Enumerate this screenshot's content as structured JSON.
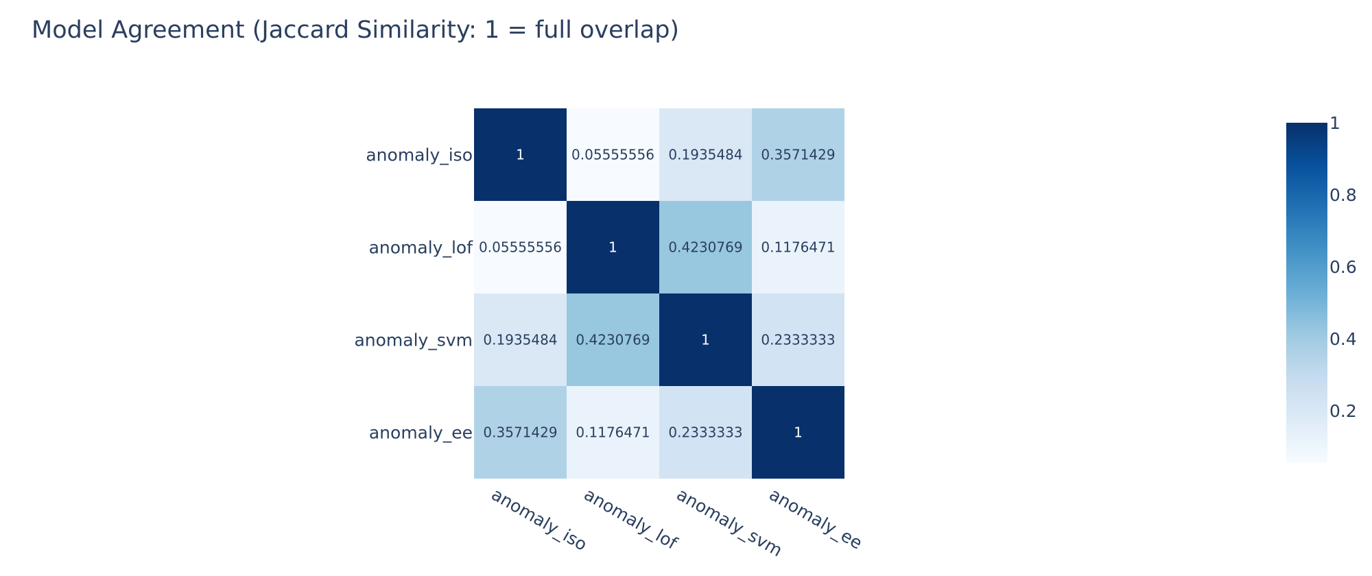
{
  "chart_data": {
    "type": "heatmap",
    "title": "Model Agreement (Jaccard Similarity: 1 = full overlap)",
    "x_categories": [
      "anomaly_iso",
      "anomaly_lof",
      "anomaly_svm",
      "anomaly_ee"
    ],
    "y_categories": [
      "anomaly_iso",
      "anomaly_lof",
      "anomaly_svm",
      "anomaly_ee"
    ],
    "values": [
      [
        1,
        0.05555556,
        0.1935484,
        0.3571429
      ],
      [
        0.05555556,
        1,
        0.4230769,
        0.1176471
      ],
      [
        0.1935484,
        0.4230769,
        1,
        0.2333333
      ],
      [
        0.3571429,
        0.1176471,
        0.2333333,
        1
      ]
    ],
    "cell_labels": [
      [
        "1",
        "0.05555556",
        "0.1935484",
        "0.3571429"
      ],
      [
        "0.05555556",
        "1",
        "0.4230769",
        "0.1176471"
      ],
      [
        "0.1935484",
        "0.4230769",
        "1",
        "0.2333333"
      ],
      [
        "0.3571429",
        "0.1176471",
        "0.2333333",
        "1"
      ]
    ],
    "colorscale": "Blues",
    "zrange": [
      0.05555556,
      1
    ],
    "colorbar": {
      "ticks": [
        0.2,
        0.4,
        0.6,
        0.8,
        1
      ],
      "tick_labels": [
        "0.2",
        "0.4",
        "0.6",
        "0.8",
        "1"
      ]
    },
    "xlabel": "",
    "ylabel": ""
  }
}
